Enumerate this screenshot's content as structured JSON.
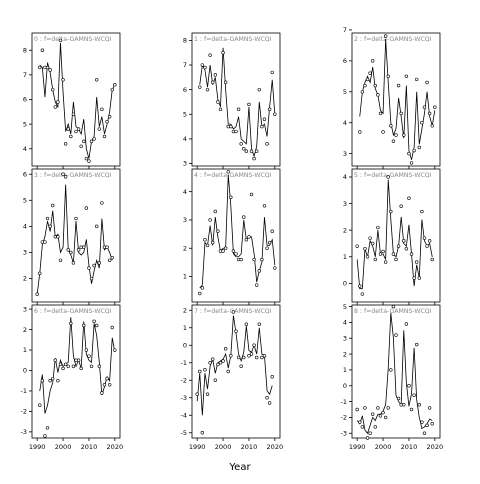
{
  "chart_data": {
    "type": "line",
    "xlabel": "Year",
    "x_ticks": [
      1990,
      2000,
      2010,
      2020
    ],
    "xlim": [
      1988,
      2022
    ],
    "panels": [
      {
        "label": "0 : f=delta-GAMNS-WCQI",
        "ylim": [
          3.3,
          8.7
        ],
        "yticks": [
          4,
          5,
          6,
          7,
          8
        ],
        "years": [
          1991,
          1992,
          1993,
          1994,
          1995,
          1996,
          1997,
          1998,
          1999,
          2000,
          2001,
          2002,
          2003,
          2004,
          2005,
          2006,
          2007,
          2008,
          2009,
          2010,
          2011,
          2012,
          2013,
          2014,
          2015,
          2016,
          2017,
          2018,
          2019,
          2020
        ],
        "points": [
          7.3,
          8.0,
          7.3,
          7.3,
          7.2,
          6.4,
          5.7,
          5.9,
          8.4,
          6.8,
          4.2,
          4.8,
          4.5,
          5.4,
          4.7,
          4.8,
          4.1,
          4.3,
          3.6,
          3.5,
          4.3,
          4.4,
          6.8,
          4.8,
          5.6,
          4.5,
          5.1,
          5.3,
          6.4,
          6.6
        ],
        "fit": [
          7.4,
          7.3,
          6.1,
          7.5,
          7.1,
          6.4,
          5.9,
          5.7,
          8.3,
          6.3,
          4.7,
          5.0,
          4.6,
          5.9,
          4.9,
          4.8,
          4.6,
          5.2,
          4.0,
          3.6,
          4.3,
          4.5,
          6.1,
          4.9,
          5.3,
          4.6,
          5.0,
          5.5,
          6.4,
          6.6
        ]
      },
      {
        "label": "3 : f=delta-GAMNS-WCQI",
        "ylim": [
          1.1,
          6.2
        ],
        "yticks": [
          2,
          3,
          4,
          5,
          6
        ],
        "years": [
          1990,
          1991,
          1992,
          1993,
          1994,
          1995,
          1996,
          1997,
          1998,
          1999,
          2000,
          2001,
          2002,
          2003,
          2004,
          2005,
          2006,
          2007,
          2008,
          2009,
          2010,
          2011,
          2012,
          2013,
          2014,
          2015,
          2016,
          2017,
          2018,
          2019
        ],
        "points": [
          1.4,
          2.2,
          3.4,
          3.4,
          4.3,
          4.0,
          4.8,
          3.6,
          3.6,
          2.7,
          6.0,
          5.9,
          3.1,
          3.0,
          2.6,
          4.3,
          3.1,
          3.2,
          3.2,
          4.7,
          2.4,
          2.0,
          2.5,
          4.0,
          2.6,
          4.9,
          3.2,
          3.2,
          2.7,
          2.8
        ],
        "fit": [
          1.4,
          2.2,
          3.3,
          3.6,
          4.2,
          3.8,
          4.6,
          3.6,
          3.7,
          3.0,
          3.2,
          5.6,
          3.1,
          2.9,
          2.6,
          4.2,
          3.0,
          2.9,
          3.0,
          3.5,
          2.5,
          1.8,
          2.3,
          2.7,
          2.4,
          4.3,
          3.1,
          3.2,
          3.0,
          2.7
        ]
      },
      {
        "label": "6 : f=delta-GAMNS-WCQI",
        "ylim": [
          -3.3,
          3.2
        ],
        "yticks": [
          -3,
          -2,
          -1,
          0,
          1,
          2,
          3
        ],
        "years": [
          1991,
          1992,
          1993,
          1994,
          1995,
          1996,
          1997,
          1998,
          1999,
          2000,
          2001,
          2002,
          2003,
          2004,
          2005,
          2006,
          2007,
          2008,
          2009,
          2010,
          2011,
          2012,
          2013,
          2014,
          2015,
          2016,
          2017,
          2018,
          2019,
          2020
        ],
        "points": [
          -1.7,
          -0.5,
          -3.2,
          -2.8,
          -0.5,
          -0.4,
          0.5,
          -0.5,
          0.3,
          0.1,
          0.3,
          0.2,
          2.3,
          0.2,
          0.5,
          0.5,
          0.1,
          2.2,
          1.0,
          0.7,
          0.2,
          2.4,
          2.2,
          0.2,
          -1.1,
          -0.7,
          -0.4,
          -0.7,
          2.1,
          1.0
        ],
        "fit": [
          -1.0,
          -0.2,
          -2.1,
          -1.7,
          -1.0,
          -0.6,
          0.6,
          -0.1,
          0.5,
          0.2,
          0.3,
          0.4,
          2.6,
          0.7,
          0.2,
          0.5,
          0.1,
          2.4,
          0.8,
          0.5,
          0.4,
          2.3,
          1.7,
          0.4,
          -1.2,
          -0.8,
          -0.3,
          -0.5,
          1.6,
          0.9
        ]
      },
      {
        "label": "1 : f=delta-GAMNS-WCQI",
        "ylim": [
          2.9,
          8.3
        ],
        "yticks": [
          3,
          4,
          5,
          6,
          7,
          8
        ],
        "years": [
          1991,
          1992,
          1993,
          1994,
          1995,
          1996,
          1997,
          1998,
          1999,
          2000,
          2001,
          2002,
          2003,
          2004,
          2005,
          2006,
          2007,
          2008,
          2009,
          2010,
          2011,
          2012,
          2013,
          2014,
          2015,
          2016,
          2017,
          2018,
          2019,
          2020
        ],
        "points": [
          6.1,
          7.0,
          6.9,
          6.0,
          7.4,
          6.3,
          6.6,
          5.5,
          5.2,
          7.5,
          6.3,
          4.5,
          4.5,
          4.3,
          4.3,
          5.2,
          3.8,
          3.6,
          3.5,
          5.4,
          3.5,
          3.2,
          3.5,
          6.0,
          4.5,
          4.8,
          3.8,
          5.2,
          6.7,
          5.0
        ],
        "fit": [
          6.2,
          7.0,
          6.8,
          6.1,
          7.0,
          6.2,
          6.5,
          5.6,
          5.3,
          7.7,
          6.0,
          4.6,
          4.6,
          4.4,
          4.5,
          4.9,
          4.0,
          3.9,
          3.8,
          5.3,
          3.6,
          3.3,
          3.7,
          5.5,
          4.5,
          4.6,
          4.1,
          5.3,
          6.4,
          5.0
        ]
      },
      {
        "label": "4 : f=delta-GAMNS-WCQI",
        "ylim": [
          0.1,
          4.8
        ],
        "yticks": [
          1,
          2,
          3,
          4
        ],
        "years": [
          1991,
          1992,
          1993,
          1994,
          1995,
          1996,
          1997,
          1998,
          1999,
          2000,
          2001,
          2002,
          2003,
          2004,
          2005,
          2006,
          2007,
          2008,
          2009,
          2010,
          2011,
          2012,
          2013,
          2014,
          2015,
          2016,
          2017,
          2018,
          2019,
          2020
        ],
        "points": [
          0.4,
          0.6,
          2.3,
          2.1,
          3.0,
          2.2,
          3.3,
          2.6,
          1.9,
          1.9,
          2.0,
          4.7,
          3.8,
          1.9,
          1.8,
          1.6,
          1.6,
          3.1,
          2.3,
          2.4,
          3.9,
          1.6,
          0.7,
          1.2,
          1.6,
          3.5,
          2.0,
          2.2,
          2.6,
          1.3
        ],
        "fit": [
          0.6,
          0.7,
          2.2,
          2.1,
          2.8,
          2.1,
          3.1,
          2.4,
          1.9,
          2.0,
          2.0,
          4.6,
          3.5,
          1.8,
          1.7,
          1.7,
          1.8,
          3.0,
          2.3,
          2.4,
          2.4,
          1.8,
          0.8,
          1.2,
          1.5,
          3.1,
          2.1,
          2.1,
          2.3,
          1.4
        ]
      },
      {
        "label": "7 : f=delta-GAMNS-WCQI",
        "ylim": [
          -5.3,
          2.3
        ],
        "yticks": [
          -5,
          -4,
          -3,
          -2,
          -1,
          0,
          1,
          2
        ],
        "years": [
          1990,
          1991,
          1992,
          1993,
          1994,
          1995,
          1996,
          1997,
          1998,
          1999,
          2000,
          2001,
          2002,
          2003,
          2004,
          2005,
          2006,
          2007,
          2008,
          2009,
          2010,
          2011,
          2012,
          2013,
          2014,
          2015,
          2016,
          2017,
          2018,
          2019
        ],
        "points": [
          -2.8,
          -1.5,
          -5.0,
          -1.4,
          -2.8,
          -1.0,
          -0.8,
          -2.0,
          -1.1,
          -1.0,
          -0.9,
          -0.2,
          -1.5,
          -0.6,
          1.9,
          0.8,
          -0.7,
          -1.2,
          -0.7,
          1.2,
          -0.6,
          -0.5,
          0.0,
          -0.7,
          1.2,
          -0.7,
          -0.6,
          -3.0,
          -3.3,
          -1.8
        ],
        "fit": [
          -3.2,
          -1.6,
          -4.0,
          -1.6,
          -2.5,
          -1.2,
          -0.8,
          -1.6,
          -1.0,
          -0.9,
          -0.8,
          -0.5,
          -1.3,
          -0.6,
          1.7,
          0.7,
          -0.5,
          -0.9,
          -0.4,
          1.1,
          -0.3,
          -0.4,
          0.0,
          -0.5,
          1.0,
          -0.5,
          -0.6,
          -2.6,
          -2.8,
          -2.3
        ]
      },
      {
        "label": "2 : f=delta-GAMNS-WCQI",
        "ylim": [
          2.6,
          6.9
        ],
        "yticks": [
          3,
          4,
          5,
          6,
          7
        ],
        "years": [
          1991,
          1992,
          1993,
          1994,
          1995,
          1996,
          1997,
          1998,
          1999,
          2000,
          2001,
          2002,
          2003,
          2004,
          2005,
          2006,
          2007,
          2008,
          2009,
          2010,
          2011,
          2012,
          2013,
          2014,
          2015,
          2016,
          2017,
          2018,
          2019,
          2020
        ],
        "points": [
          3.7,
          5.0,
          5.2,
          5.4,
          5.6,
          6.0,
          5.2,
          4.9,
          4.3,
          3.7,
          6.8,
          5.5,
          3.9,
          3.4,
          3.6,
          5.2,
          4.3,
          3.6,
          5.5,
          3.0,
          2.7,
          3.1,
          5.4,
          3.2,
          4.0,
          4.5,
          5.3,
          4.3,
          3.9,
          4.5
        ],
        "fit": [
          4.2,
          5.0,
          5.3,
          5.5,
          5.3,
          5.8,
          5.1,
          4.9,
          4.4,
          4.3,
          6.7,
          5.3,
          4.0,
          3.6,
          3.8,
          4.8,
          4.2,
          3.5,
          5.2,
          3.1,
          2.8,
          3.2,
          5.0,
          3.3,
          3.8,
          4.3,
          5.0,
          4.2,
          3.9,
          4.4
        ]
      },
      {
        "label": "5 : f=delta-GAMNS-WCQI",
        "ylim": [
          -0.7,
          4.3
        ],
        "yticks": [
          0,
          1,
          2,
          3,
          4
        ],
        "years": [
          1990,
          1991,
          1992,
          1993,
          1994,
          1995,
          1996,
          1997,
          1998,
          1999,
          2000,
          2001,
          2002,
          2003,
          2004,
          2005,
          2006,
          2007,
          2008,
          2009,
          2010,
          2011,
          2012,
          2013,
          2014,
          2015,
          2016,
          2017,
          2018,
          2019
        ],
        "points": [
          1.4,
          -0.1,
          -0.4,
          1.3,
          1.0,
          1.7,
          1.5,
          0.9,
          2.1,
          1.1,
          1.2,
          0.8,
          4.0,
          2.7,
          1.1,
          0.9,
          1.4,
          2.9,
          1.6,
          1.3,
          3.2,
          1.1,
          0.2,
          0.8,
          0.2,
          2.7,
          1.7,
          1.4,
          1.6,
          0.9
        ],
        "fit": [
          0.9,
          -0.2,
          -0.2,
          1.3,
          1.0,
          1.6,
          1.4,
          1.0,
          2.0,
          1.1,
          1.1,
          0.9,
          3.9,
          2.4,
          1.1,
          1.0,
          1.4,
          2.5,
          1.5,
          1.4,
          2.2,
          1.1,
          -0.1,
          0.7,
          0.2,
          2.4,
          1.6,
          1.4,
          1.5,
          1.0
        ]
      },
      {
        "label": "8 : f=delta-GAMNS-WCQI",
        "ylim": [
          -3.3,
          5.1
        ],
        "yticks": [
          -3,
          -2,
          -1,
          0,
          1,
          2,
          3,
          4,
          5
        ],
        "years": [
          1990,
          1991,
          1992,
          1993,
          1994,
          1995,
          1996,
          1997,
          1998,
          1999,
          2000,
          2001,
          2002,
          2003,
          2004,
          2005,
          2006,
          2007,
          2008,
          2009,
          2010,
          2011,
          2012,
          2013,
          2014,
          2015,
          2016,
          2017,
          2018,
          2019
        ],
        "points": [
          -1.5,
          -2.3,
          -2.6,
          -1.4,
          -3.3,
          -3.0,
          -1.8,
          -2.6,
          -1.4,
          -1.9,
          -1.7,
          -2.0,
          -1.4,
          1.0,
          5.0,
          3.2,
          -0.8,
          -1.2,
          -1.2,
          3.9,
          0.0,
          -1.5,
          -0.6,
          2.6,
          -1.2,
          -2.3,
          -3.0,
          -2.5,
          -1.4,
          -2.4
        ],
        "fit": [
          -2.2,
          -2.4,
          -1.9,
          -2.8,
          -3.0,
          -2.5,
          -2.0,
          -2.2,
          -1.8,
          -1.8,
          -1.6,
          -1.2,
          1.1,
          4.6,
          3.0,
          -0.6,
          -1.0,
          -1.2,
          3.5,
          0.2,
          -1.3,
          -0.5,
          2.4,
          -0.9,
          -2.0,
          -2.7,
          -2.6,
          -2.4,
          -2.1,
          -2.2
        ]
      }
    ]
  }
}
